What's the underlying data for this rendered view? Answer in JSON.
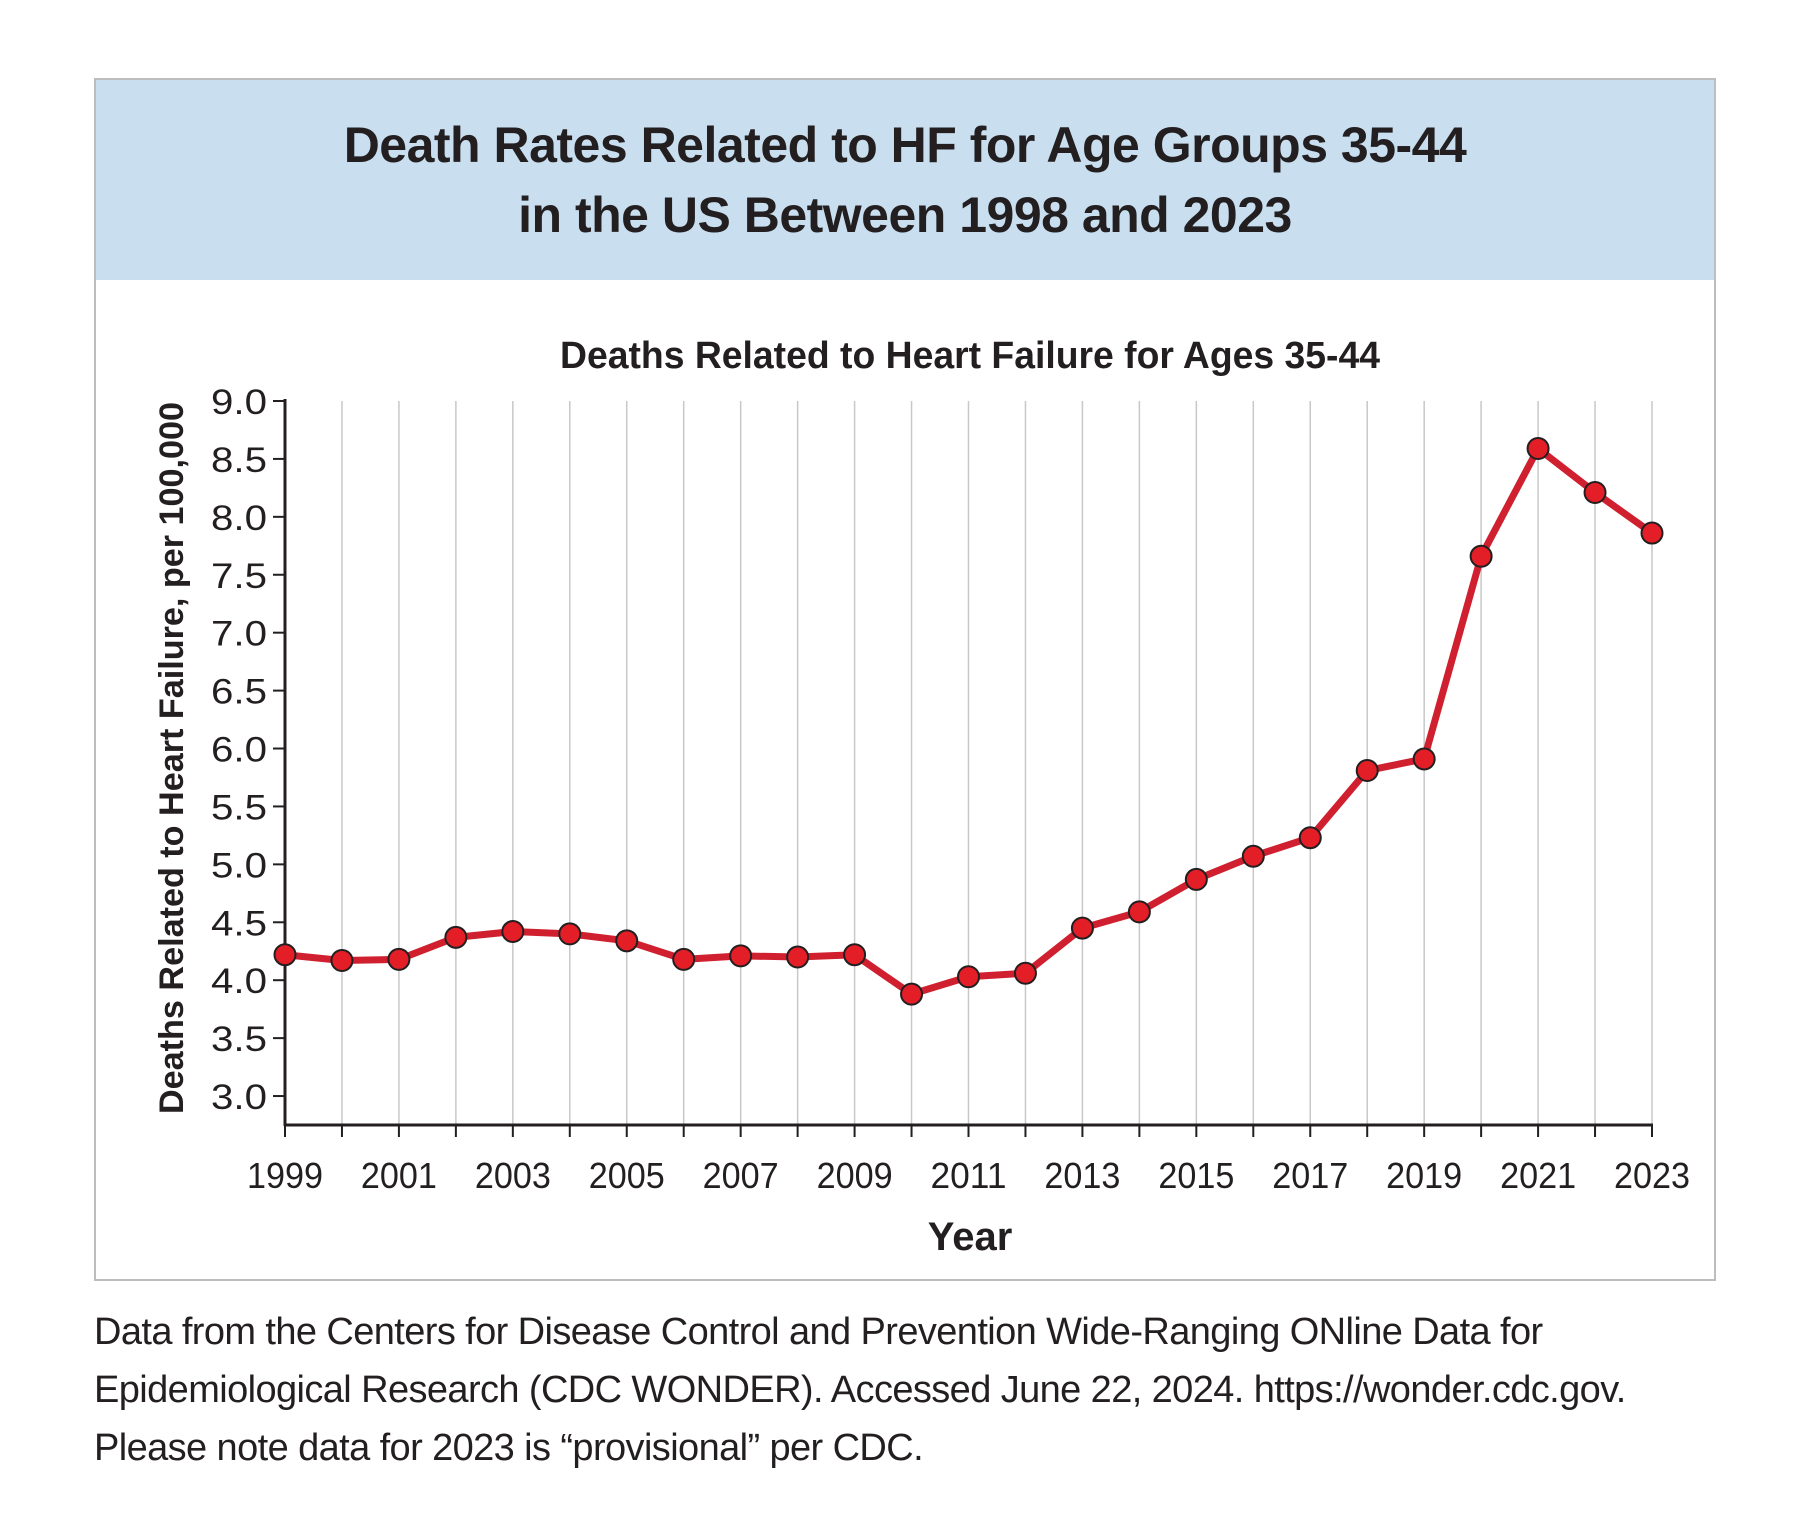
{
  "banner": {
    "line1": "Death Rates Related to HF for Age Groups 35-44",
    "line2": "in the US Between 1998 and 2023"
  },
  "footnote": {
    "line1": "Data from the Centers for Disease Control and Prevention Wide-Ranging ONline Data for",
    "line2": "Epidemiological Research (CDC WONDER). Accessed June 22, 2024. https://wonder.cdc.gov.",
    "line3": "Please note data for 2023 is “provisional” per CDC."
  },
  "colors": {
    "banner_background": "#c9dff0",
    "series_line": "#d0202f",
    "marker_fill": "#e41e26",
    "gridline": "#c8c8c8",
    "text": "#231f20"
  },
  "chart_data": {
    "type": "line",
    "title": "Deaths Related to Heart Failure for Ages 35-44",
    "xlabel": "Year",
    "ylabel": "Deaths Related to Heart Failure, per 100,000",
    "x": [
      1999,
      2000,
      2001,
      2002,
      2003,
      2004,
      2005,
      2006,
      2007,
      2008,
      2009,
      2010,
      2011,
      2012,
      2013,
      2014,
      2015,
      2016,
      2017,
      2018,
      2019,
      2020,
      2021,
      2022,
      2023
    ],
    "x_tick_labels": [
      "1999",
      "2001",
      "2003",
      "2005",
      "2007",
      "2009",
      "2011",
      "2013",
      "2015",
      "2017",
      "2019",
      "2021",
      "2023"
    ],
    "y_tick_labels": [
      "3.0",
      "3.5",
      "4.0",
      "4.5",
      "5.0",
      "5.5",
      "6.0",
      "6.5",
      "7.0",
      "7.5",
      "8.0",
      "8.5",
      "9.0"
    ],
    "ylim": [
      2.75,
      9.0
    ],
    "xlim": [
      1999,
      2023
    ],
    "grid": "vertical",
    "legend": "none",
    "series": [
      {
        "values": [
          4.22,
          4.17,
          4.18,
          4.37,
          4.42,
          4.4,
          4.34,
          4.18,
          4.21,
          4.2,
          4.22,
          3.88,
          4.03,
          4.06,
          4.45,
          4.59,
          4.87,
          5.07,
          5.23,
          5.81,
          5.91,
          7.66,
          8.59,
          8.21,
          7.86
        ]
      }
    ]
  }
}
